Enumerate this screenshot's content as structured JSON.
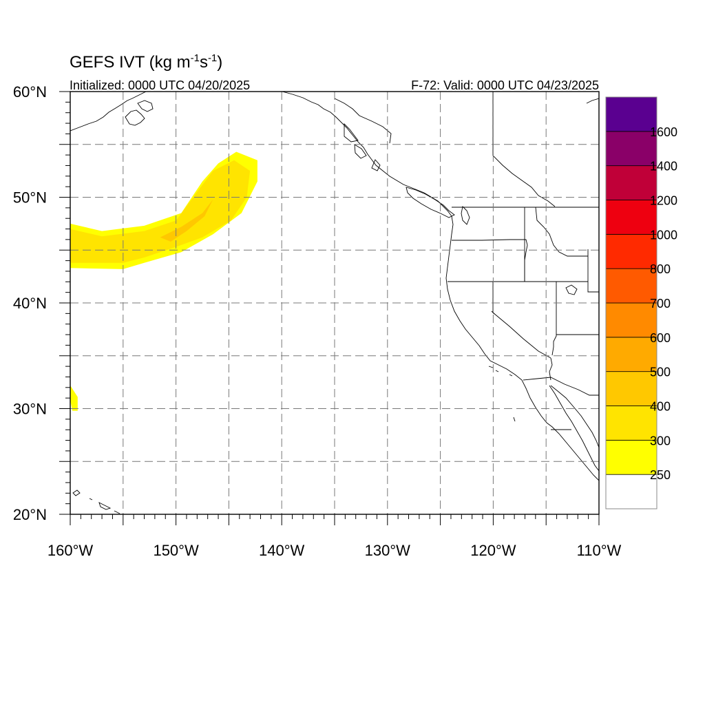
{
  "title": {
    "main": "GEFS IVT (kg m",
    "sup1": "-1",
    "mid": "s",
    "sup2": "-1",
    "close": ")"
  },
  "subtitle_left": "Initialized: 0000 UTC 04/20/2025",
  "subtitle_right": "F-72: Valid: 0000 UTC 04/23/2025",
  "map": {
    "lon_range": [
      -160,
      -110
    ],
    "lat_range": [
      20,
      60
    ],
    "lon_ticks": [
      -160,
      -150,
      -140,
      -130,
      -120,
      -110
    ],
    "lat_ticks": [
      20,
      30,
      40,
      50,
      60
    ],
    "lon_tick_labels": [
      "160°W",
      "150°W",
      "140°W",
      "130°W",
      "120°W",
      "110°W"
    ],
    "lat_tick_labels": [
      "20°N",
      "30°N",
      "40°N",
      "50°N",
      "60°N"
    ],
    "grid_spacing_deg": 5,
    "grid": "dashed"
  },
  "colorbar": {
    "levels": [
      "250",
      "300",
      "400",
      "500",
      "600",
      "700",
      "800",
      "1000",
      "1200",
      "1400",
      "1600"
    ],
    "colors": [
      "#ffffff",
      "#ffff00",
      "#ffe400",
      "#ffc800",
      "#ffaa00",
      "#ff8a00",
      "#ff5a00",
      "#ff2a00",
      "#ee0010",
      "#c00038",
      "#8a0068",
      "#5a0090"
    ]
  },
  "ivt_field": {
    "units": "kg m-1 s-1",
    "main_band": {
      "description_levels": [
        "250-300",
        "300-400",
        "400-500"
      ],
      "outer_250": [
        [
          -160,
          47.5
        ],
        [
          -157,
          46.8
        ],
        [
          -153,
          47.3
        ],
        [
          -149.5,
          48.5
        ],
        [
          -147.5,
          51.5
        ],
        [
          -146,
          53.2
        ],
        [
          -144.3,
          54.3
        ],
        [
          -142.3,
          53.5
        ],
        [
          -142.3,
          51.5
        ],
        [
          -143.8,
          48.5
        ],
        [
          -146.5,
          46.5
        ],
        [
          -149.5,
          44.8
        ],
        [
          -153,
          43.8
        ],
        [
          -155,
          43.2
        ],
        [
          -160,
          43.3
        ]
      ],
      "inner_300": [
        [
          -160,
          47
        ],
        [
          -157,
          46.3
        ],
        [
          -153,
          46.8
        ],
        [
          -150,
          47.8
        ],
        [
          -148,
          50.5
        ],
        [
          -146.5,
          52.5
        ],
        [
          -144.5,
          53.5
        ],
        [
          -143,
          52.5
        ],
        [
          -143.3,
          50
        ],
        [
          -144.8,
          47.8
        ],
        [
          -147.5,
          46.2
        ],
        [
          -150,
          45.3
        ],
        [
          -153,
          44.3
        ],
        [
          -155,
          43.8
        ],
        [
          -160,
          43.8
        ]
      ],
      "core_400": [
        [
          -151.5,
          46.2
        ],
        [
          -149.5,
          47.2
        ],
        [
          -147.5,
          48.5
        ],
        [
          -146.5,
          49.8
        ],
        [
          -147.3,
          48.2
        ],
        [
          -149,
          46.8
        ],
        [
          -150.5,
          45.8
        ]
      ]
    },
    "small_patch_250": [
      [
        -160,
        32.2
      ],
      [
        -159.3,
        31.1
      ],
      [
        -159.3,
        29.8
      ],
      [
        -159.8,
        29.8
      ],
      [
        -160,
        30.8
      ]
    ]
  }
}
